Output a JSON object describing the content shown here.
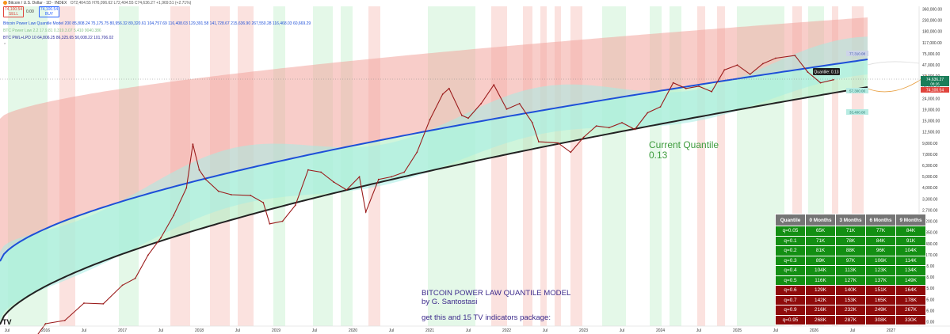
{
  "header": {
    "symbol_line": "Bitcoin / U.S. Dollar · 1D · INDEX",
    "ohlc": "O72,404.55 H76,096.62 L72,404.55 C74,636.27 +1,969.51 (+2.71%)",
    "sell_price": "74,100.54",
    "sell_label": "SELL",
    "spread": "0.00",
    "buy_price": "74,100.54",
    "buy_label": "BUY",
    "indicator_1": "Bitcoin Power Law Quantile Model  200  85,808.24  75,175.75  80,956.32  89,320.61  104,757.69  116,408.03  129,391.58  141,728.67  215,636.90  267,550.28  116,468.03  60,669.29",
    "indicator_2": "BTC Power Law 2.2  17.9.81  0.319.3.07  5.410  9040.386",
    "indicator_3": "BTC PWL+LPD 10  64,806.25  86,325.65  50,008.22  101,706.02"
  },
  "chart_data": {
    "type": "line",
    "title": "BITCOIN POWER LAW QUANTILE MODEL",
    "subtitle": "by G. Santostasi",
    "xlabel": "",
    "ylabel": "",
    "y_scale": "log",
    "x_tick_labels": [
      "Jul",
      "2016",
      "Jul",
      "2017",
      "Jul",
      "2018",
      "Jul",
      "2019",
      "Jul",
      "2020",
      "Jul",
      "2021",
      "Jul",
      "2022",
      "Jul",
      "2023",
      "Jul",
      "2024",
      "Jul",
      "2025",
      "Jul",
      "2026",
      "Jul",
      "2027"
    ],
    "y_tick_labels": [
      "360,000.00",
      "230,000.00",
      "180,000.00",
      "117,000.00",
      "75,000.00",
      "47,000.00",
      "37,000.00",
      "30,000.00",
      "24,000.00",
      "19,000.00",
      "15,000.00",
      "12,500.00",
      "9,800.00",
      "7,800.00",
      "6,300.00",
      "5,000.00",
      "4,000.00",
      "3,300.00",
      "2,700.00",
      "2,200.00",
      "1,850.00",
      "1,490.00",
      "1,170.00",
      "965.00",
      "765.00",
      "625.00",
      "495.00",
      "405.00",
      "320.00"
    ],
    "price_series": {
      "name": "Bitcoin / U.S. Dollar",
      "x": [
        "2015-07",
        "2015-10",
        "2016-01",
        "2016-04",
        "2016-07",
        "2016-10",
        "2017-01",
        "2017-03",
        "2017-05",
        "2017-07",
        "2017-09",
        "2017-11",
        "2017-12",
        "2018-01",
        "2018-02",
        "2018-04",
        "2018-06",
        "2018-09",
        "2018-11",
        "2018-12",
        "2019-02",
        "2019-04",
        "2019-06",
        "2019-08",
        "2019-10",
        "2019-12",
        "2020-02",
        "2020-03",
        "2020-05",
        "2020-07",
        "2020-09",
        "2020-11",
        "2021-01",
        "2021-03",
        "2021-04",
        "2021-06",
        "2021-07",
        "2021-09",
        "2021-11",
        "2022-01",
        "2022-03",
        "2022-05",
        "2022-06",
        "2022-09",
        "2022-11",
        "2023-01",
        "2023-03",
        "2023-05",
        "2023-07",
        "2023-09",
        "2023-11",
        "2024-01",
        "2024-03",
        "2024-05",
        "2024-07",
        "2024-09",
        "2024-11",
        "2025-01",
        "2025-03",
        "2025-05",
        "2025-07",
        "2025-10",
        "2025-12",
        "2026-02",
        "2026-04"
      ],
      "y": [
        290,
        240,
        420,
        450,
        650,
        640,
        950,
        1100,
        1800,
        2600,
        4200,
        7500,
        19000,
        11000,
        9000,
        7000,
        6500,
        6400,
        5500,
        3500,
        3700,
        5200,
        11000,
        10500,
        8500,
        7200,
        9500,
        4500,
        9000,
        9500,
        10500,
        16000,
        32000,
        55000,
        62000,
        35000,
        33000,
        45000,
        67000,
        40000,
        45000,
        30000,
        20000,
        19500,
        16000,
        22000,
        28000,
        27000,
        30000,
        26000,
        37000,
        42000,
        70000,
        62000,
        65000,
        58000,
        92000,
        102000,
        84000,
        105000,
        118000,
        125000,
        88000,
        70000,
        74636.27
      ]
    },
    "quantile_lines": [
      {
        "name": "q=0.05",
        "color": "#222222"
      },
      {
        "name": "q=0.5",
        "color": "#1e4fd8"
      }
    ],
    "annotations": {
      "current_quantile": "Current Quantile\n0.13",
      "quantile_tag": "Quantile: 0.13",
      "promo": "get this and 15 TV indicators package:"
    },
    "price_tags": {
      "last_price": "74,636.27",
      "last_price_sub": "08:26",
      "sell": "74,100.54",
      "q_upper": "77,310.08",
      "q_low": "57,300.00",
      "q_lower": "33,400.00"
    },
    "table": {
      "columns": [
        "Quantile",
        "0 Months",
        "3 Months",
        "6 Months",
        "9 Months"
      ],
      "rows": [
        {
          "q": "q=0.05",
          "values": [
            "65K",
            "71K",
            "77K",
            "84K"
          ],
          "color": "#138f13"
        },
        {
          "q": "q=0.1",
          "values": [
            "71K",
            "78K",
            "84K",
            "91K"
          ],
          "color": "#138f13"
        },
        {
          "q": "q=0.2",
          "values": [
            "81K",
            "88K",
            "96K",
            "104K"
          ],
          "color": "#138f13"
        },
        {
          "q": "q=0.3",
          "values": [
            "89K",
            "97K",
            "106K",
            "114K"
          ],
          "color": "#138f13"
        },
        {
          "q": "q=0.4",
          "values": [
            "104K",
            "113K",
            "123K",
            "134K"
          ],
          "color": "#138f13"
        },
        {
          "q": "q=0.5",
          "values": [
            "116K",
            "127K",
            "137K",
            "149K"
          ],
          "color": "#138f13"
        },
        {
          "q": "q=0.6",
          "values": [
            "129K",
            "140K",
            "151K",
            "164K"
          ],
          "color": "#8f0b0b"
        },
        {
          "q": "q=0.7",
          "values": [
            "142K",
            "153K",
            "165K",
            "178K"
          ],
          "color": "#8f0b0b"
        },
        {
          "q": "q=0.9",
          "values": [
            "216K",
            "232K",
            "249K",
            "267K"
          ],
          "color": "#8f0b0b"
        },
        {
          "q": "q=0.95",
          "values": [
            "268K",
            "287K",
            "308K",
            "330K"
          ],
          "color": "#8f0b0b"
        }
      ]
    },
    "colors": {
      "red_band": "#f2a49c",
      "green_band": "#b6f0c8",
      "cyan_band": "#a6ede4",
      "price": "#9b1c1c",
      "median": "#1e4fd8",
      "floor": "#222222",
      "annotation_green": "#3e9c3e",
      "promo_text": "#3d2b8c"
    }
  }
}
